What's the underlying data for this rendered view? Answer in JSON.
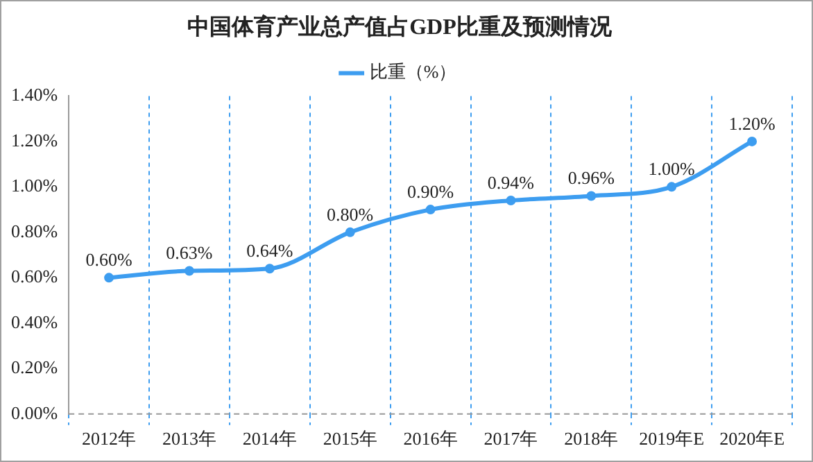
{
  "chart_data": {
    "type": "line",
    "title": "中国体育产业总产值占GDP比重及预测情况",
    "categories": [
      "2012年",
      "2013年",
      "2014年",
      "2015年",
      "2016年",
      "2017年",
      "2018年",
      "2019年E",
      "2020年E"
    ],
    "series": [
      {
        "name": "比重（%）",
        "color": "#3d9df0",
        "values": [
          0.6,
          0.63,
          0.64,
          0.8,
          0.9,
          0.94,
          0.96,
          1.0,
          1.2
        ],
        "value_labels": [
          "0.60%",
          "0.63%",
          "0.64%",
          "0.80%",
          "0.90%",
          "0.94%",
          "0.96%",
          "1.00%",
          "1.20%"
        ]
      }
    ],
    "ylim": [
      0,
      1.4
    ],
    "yticks": [
      {
        "value": 0,
        "label": "0.00%"
      },
      {
        "value": 0.2,
        "label": "0.20%"
      },
      {
        "value": 0.4,
        "label": "0.40%"
      },
      {
        "value": 0.6,
        "label": "0.60%"
      },
      {
        "value": 0.8,
        "label": "0.80%"
      },
      {
        "value": 1.0,
        "label": "1.00%"
      },
      {
        "value": 1.2,
        "label": "1.20%"
      },
      {
        "value": 1.4,
        "label": "1.40%"
      }
    ],
    "grid": "x",
    "legend": "top",
    "marker": "circle",
    "line_style": "solid"
  }
}
